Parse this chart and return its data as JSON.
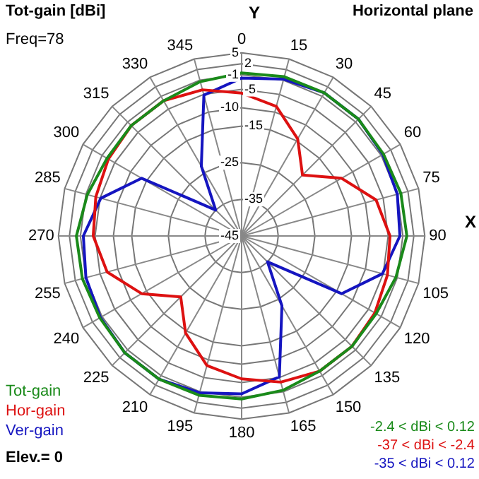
{
  "chart_data": {
    "type": "radar",
    "title": "Tot-gain [dBi]",
    "subtitle": "Horizontal plane",
    "xlabel": "X",
    "ylabel": "Y",
    "categories": [
      "0",
      "15",
      "30",
      "45",
      "60",
      "75",
      "90",
      "105",
      "120",
      "135",
      "150",
      "165",
      "180",
      "195",
      "210",
      "225",
      "240",
      "255",
      "270",
      "285",
      "300",
      "315",
      "330",
      "345"
    ],
    "series": [
      {
        "name": "Tot-gain",
        "color": "#1a8a1a",
        "values": [
          -0.5,
          0,
          0.1,
          0.1,
          -0.3,
          0,
          0.1,
          -1.4,
          -2.6,
          -2.4,
          -2.4,
          -1.4,
          -0.5,
          0,
          0.1,
          0.1,
          -0.3,
          0,
          0.1,
          -1.4,
          -2.6,
          -2.4,
          -2.4,
          -1.4
        ]
      },
      {
        "name": "Hor-gain",
        "color": "#dd1111",
        "values": [
          -6,
          -8.4,
          -14.4,
          -21.5,
          -13.5,
          -7,
          -4.5,
          -3.8,
          -3,
          -2.4,
          -2.4,
          -3.7,
          -6,
          -8.4,
          -14.4,
          -21.5,
          -13.5,
          -7,
          -4.5,
          -3.8,
          -3,
          -2.4,
          -2.4,
          -3.7
        ]
      },
      {
        "name": "Ver-gain",
        "color": "#1515c0",
        "values": [
          -1.9,
          -0.7,
          0.1,
          0.1,
          -0.5,
          -1,
          -1.8,
          -5.2,
          -13.5,
          -35,
          -23,
          -5.2,
          -1.9,
          -0.7,
          0.1,
          0.1,
          -0.5,
          -1,
          -1.8,
          -5.2,
          -13.5,
          -35,
          -23,
          -5.2
        ]
      }
    ],
    "ylim": [
      -45,
      5
    ],
    "yticks": [
      -45,
      -35,
      -25,
      -15,
      -10,
      -5,
      -1,
      2,
      5
    ],
    "grid": true,
    "legend": "bottom left",
    "marker": "none",
    "line_style": "solid",
    "annotations": [
      "Freq=78",
      "Elev.= 0",
      "-2.4 < dBi < 0.12",
      "-37 < dBi < -2.4",
      "-35 < dBi < 0.12"
    ]
  }
}
